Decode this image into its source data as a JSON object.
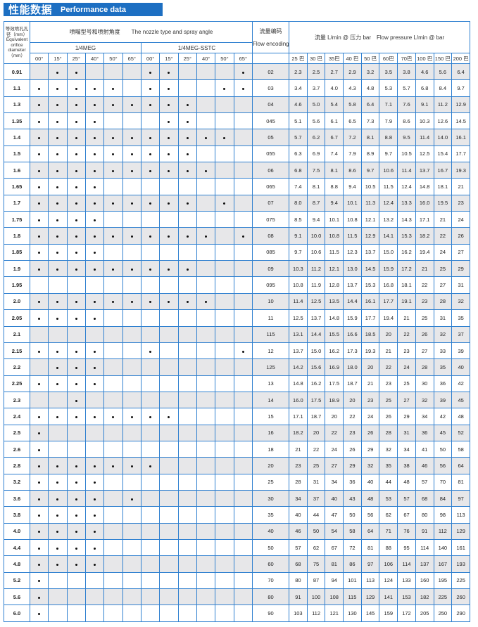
{
  "title": {
    "cn": "性能数据",
    "en": "Performance data"
  },
  "colors": {
    "brand": "#1d6fc2",
    "grid": "#2f80d0",
    "stripe": "#e7e7e9"
  },
  "header": {
    "diameter_cn": "等效喷孔孔径（mm）",
    "diameter_en": "Equivalent orifice diameter（mm）",
    "nozzle_title": "喷嘴型号和喷射角度　　The nozzle type and spray angle",
    "series": [
      "1/4MEG",
      "1/4MEG-SSTC"
    ],
    "angles": [
      "00°",
      "15°",
      "25°",
      "40°",
      "50°",
      "65°"
    ],
    "flow_code_cn": "流量编码",
    "flow_code_en": "Flow encoding",
    "flow_title": "流量 L/min @ 压力 bar　Flow pressure L/min @ bar",
    "pressures": [
      "25 巴",
      "30 巴",
      "35巴",
      "40 巴",
      "50 巴",
      "60巴",
      "70巴",
      "100 巴",
      "150 巴",
      "200 巴"
    ]
  },
  "rows": [
    {
      "d": "0.91",
      "dots": "011000110001",
      "code": "02",
      "flow": [
        "2.3",
        "2.5",
        "2.7",
        "2.9",
        "3.2",
        "3.5",
        "3.8",
        "4.6",
        "5.6",
        "6.4"
      ]
    },
    {
      "d": "1.1",
      "dots": "111110110011",
      "code": "03",
      "flow": [
        "3.4",
        "3.7",
        "4.0",
        "4.3",
        "4.8",
        "5.3",
        "5.7",
        "6.8",
        "8.4",
        "9.7"
      ]
    },
    {
      "d": "1.3",
      "dots": "111111111000",
      "code": "04",
      "flow": [
        "4.6",
        "5.0",
        "5.4",
        "5.8",
        "6.4",
        "7.1",
        "7.6",
        "9.1",
        "11.2",
        "12.9"
      ]
    },
    {
      "d": "1.35",
      "dots": "111100011000",
      "code": "045",
      "flow": [
        "5.1",
        "5.6",
        "6.1",
        "6.5",
        "7.3",
        "7.9",
        "8.6",
        "10.3",
        "12.6",
        "14.5"
      ]
    },
    {
      "d": "1.4",
      "dots": "111111111110",
      "code": "05",
      "flow": [
        "5.7",
        "6.2",
        "6.7",
        "7.2",
        "8.1",
        "8.8",
        "9.5",
        "11.4",
        "14.0",
        "16.1"
      ]
    },
    {
      "d": "1.5",
      "dots": "111111111000",
      "code": "055",
      "flow": [
        "6.3",
        "6.9",
        "7.4",
        "7.9",
        "8.9",
        "9.7",
        "10.5",
        "12.5",
        "15.4",
        "17.7"
      ]
    },
    {
      "d": "1.6",
      "dots": "111111111100",
      "code": "06",
      "flow": [
        "6.8",
        "7.5",
        "8.1",
        "8.6",
        "9.7",
        "10.6",
        "11.4",
        "13.7",
        "16.7",
        "19.3"
      ]
    },
    {
      "d": "1.65",
      "dots": "111100000000",
      "code": "065",
      "flow": [
        "7.4",
        "8.1",
        "8.8",
        "9.4",
        "10.5",
        "11.5",
        "12.4",
        "14.8",
        "18.1",
        "21"
      ]
    },
    {
      "d": "1.7",
      "dots": "111111111010",
      "code": "07",
      "flow": [
        "8.0",
        "8.7",
        "9.4",
        "10.1",
        "11.3",
        "12.4",
        "13.3",
        "16.0",
        "19.5",
        "23"
      ]
    },
    {
      "d": "1.75",
      "dots": "111100000000",
      "code": "075",
      "flow": [
        "8.5",
        "9.4",
        "10.1",
        "10.8",
        "12.1",
        "13.2",
        "14.3",
        "17.1",
        "21",
        "24"
      ]
    },
    {
      "d": "1.8",
      "dots": "111111111101",
      "code": "08",
      "flow": [
        "9.1",
        "10.0",
        "10.8",
        "11.5",
        "12.9",
        "14.1",
        "15.3",
        "18.2",
        "22",
        "26"
      ]
    },
    {
      "d": "1.85",
      "dots": "111100000000",
      "code": "085",
      "flow": [
        "9.7",
        "10.6",
        "11.5",
        "12.3",
        "13.7",
        "15.0",
        "16.2",
        "19.4",
        "24",
        "27"
      ]
    },
    {
      "d": "1.9",
      "dots": "111111111000",
      "code": "09",
      "flow": [
        "10.3",
        "11.2",
        "12.1",
        "13.0",
        "14.5",
        "15.9",
        "17.2",
        "21",
        "25",
        "29"
      ]
    },
    {
      "d": "1.95",
      "dots": "000000000000",
      "code": "095",
      "flow": [
        "10.8",
        "11.9",
        "12.8",
        "13.7",
        "15.3",
        "16.8",
        "18.1",
        "22",
        "27",
        "31"
      ]
    },
    {
      "d": "2.0",
      "dots": "111111111100",
      "code": "10",
      "flow": [
        "11.4",
        "12.5",
        "13.5",
        "14.4",
        "16.1",
        "17.7",
        "19.1",
        "23",
        "28",
        "32"
      ]
    },
    {
      "d": "2.05",
      "dots": "111100000000",
      "code": "11",
      "flow": [
        "12.5",
        "13.7",
        "14.8",
        "15.9",
        "17.7",
        "19.4",
        "21",
        "25",
        "31",
        "35"
      ]
    },
    {
      "d": "2.1",
      "dots": "000000000000",
      "code": "115",
      "flow": [
        "13.1",
        "14.4",
        "15.5",
        "16.6",
        "18.5",
        "20",
        "22",
        "26",
        "32",
        "37"
      ]
    },
    {
      "d": "2.15",
      "dots": "111100100001",
      "code": "12",
      "flow": [
        "13.7",
        "15.0",
        "16.2",
        "17.3",
        "19.3",
        "21",
        "23",
        "27",
        "33",
        "39"
      ]
    },
    {
      "d": "2.2",
      "dots": "011100000000",
      "code": "125",
      "flow": [
        "14.2",
        "15.6",
        "16.9",
        "18.0",
        "20",
        "22",
        "24",
        "28",
        "35",
        "40"
      ]
    },
    {
      "d": "2.25",
      "dots": "111100000000",
      "code": "13",
      "flow": [
        "14.8",
        "16.2",
        "17.5",
        "18.7",
        "21",
        "23",
        "25",
        "30",
        "36",
        "42"
      ]
    },
    {
      "d": "2.3",
      "dots": "001000000000",
      "code": "14",
      "flow": [
        "16.0",
        "17.5",
        "18.9",
        "20",
        "23",
        "25",
        "27",
        "32",
        "39",
        "45"
      ]
    },
    {
      "d": "2.4",
      "dots": "111111110000",
      "code": "15",
      "flow": [
        "17.1",
        "18.7",
        "20",
        "22",
        "24",
        "26",
        "29",
        "34",
        "42",
        "48"
      ]
    },
    {
      "d": "2.5",
      "dots": "100000000000",
      "code": "16",
      "flow": [
        "18.2",
        "20",
        "22",
        "23",
        "26",
        "28",
        "31",
        "36",
        "45",
        "52"
      ]
    },
    {
      "d": "2.6",
      "dots": "100000000000",
      "code": "18",
      "flow": [
        "21",
        "22",
        "24",
        "26",
        "29",
        "32",
        "34",
        "41",
        "50",
        "58"
      ]
    },
    {
      "d": "2.8",
      "dots": "111111100000",
      "code": "20",
      "flow": [
        "23",
        "25",
        "27",
        "29",
        "32",
        "35",
        "38",
        "46",
        "56",
        "64"
      ]
    },
    {
      "d": "3.2",
      "dots": "111100000000",
      "code": "25",
      "flow": [
        "28",
        "31",
        "34",
        "36",
        "40",
        "44",
        "48",
        "57",
        "70",
        "81"
      ]
    },
    {
      "d": "3.6",
      "dots": "111101000000",
      "code": "30",
      "flow": [
        "34",
        "37",
        "40",
        "43",
        "48",
        "53",
        "57",
        "68",
        "84",
        "97"
      ]
    },
    {
      "d": "3.8",
      "dots": "111100000000",
      "code": "35",
      "flow": [
        "40",
        "44",
        "47",
        "50",
        "56",
        "62",
        "67",
        "80",
        "98",
        "113"
      ]
    },
    {
      "d": "4.0",
      "dots": "111100000000",
      "code": "40",
      "flow": [
        "46",
        "50",
        "54",
        "58",
        "64",
        "71",
        "76",
        "91",
        "112",
        "129"
      ]
    },
    {
      "d": "4.4",
      "dots": "111100000000",
      "code": "50",
      "flow": [
        "57",
        "62",
        "67",
        "72",
        "81",
        "88",
        "95",
        "114",
        "140",
        "161"
      ]
    },
    {
      "d": "4.8",
      "dots": "111100000000",
      "code": "60",
      "flow": [
        "68",
        "75",
        "81",
        "86",
        "97",
        "106",
        "114",
        "137",
        "167",
        "193"
      ]
    },
    {
      "d": "5.2",
      "dots": "100000000000",
      "code": "70",
      "flow": [
        "80",
        "87",
        "94",
        "101",
        "113",
        "124",
        "133",
        "160",
        "195",
        "225"
      ]
    },
    {
      "d": "5.6",
      "dots": "100000000000",
      "code": "80",
      "flow": [
        "91",
        "100",
        "108",
        "115",
        "129",
        "141",
        "153",
        "182",
        "225",
        "260"
      ]
    },
    {
      "d": "6.0",
      "dots": "100000000000",
      "code": "90",
      "flow": [
        "103",
        "112",
        "121",
        "130",
        "145",
        "159",
        "172",
        "205",
        "250",
        "290"
      ]
    }
  ]
}
